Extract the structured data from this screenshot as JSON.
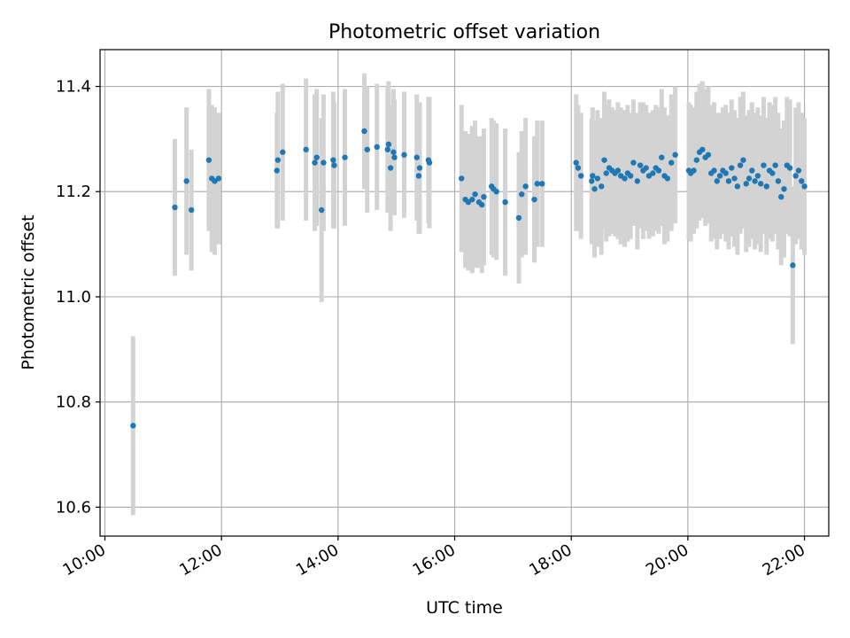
{
  "chart_data": {
    "type": "scatter",
    "title": "Photometric offset variation",
    "xlabel": "UTC time",
    "ylabel": "Photometric offset",
    "xlim": [
      "09:55",
      "22:25"
    ],
    "ylim": [
      10.545,
      11.47
    ],
    "grid": true,
    "x_ticks": [
      "10:00",
      "12:00",
      "14:00",
      "16:00",
      "18:00",
      "20:00",
      "22:00"
    ],
    "y_ticks": [
      "10.6",
      "10.8",
      "11.0",
      "11.2",
      "11.4"
    ],
    "point_color": "#1f77b4",
    "errorbar_color": "#d3d3d3",
    "x": [
      "10:29",
      "11:12",
      "11:24",
      "11:29",
      "11:47",
      "11:50",
      "11:53",
      "11:57",
      "12:57",
      "12:58",
      "13:03",
      "13:27",
      "13:36",
      "13:38",
      "13:43",
      "13:45",
      "13:55",
      "13:56",
      "14:07",
      "14:27",
      "14:30",
      "14:40",
      "14:51",
      "14:52",
      "14:54",
      "14:57",
      "14:58",
      "15:08",
      "15:21",
      "15:23",
      "15:24",
      "15:33",
      "15:34",
      "16:07",
      "16:11",
      "16:14",
      "16:18",
      "16:21",
      "16:25",
      "16:28",
      "16:30",
      "16:38",
      "16:40",
      "16:43",
      "16:52",
      "17:06",
      "17:09",
      "17:13",
      "17:22",
      "17:25",
      "17:30",
      "18:05",
      "18:07",
      "18:10",
      "18:21",
      "18:22",
      "18:24",
      "18:27",
      "18:31",
      "18:34",
      "18:36",
      "18:39",
      "18:42",
      "18:45",
      "18:48",
      "18:51",
      "18:55",
      "18:58",
      "19:01",
      "19:04",
      "19:08",
      "19:11",
      "19:14",
      "19:17",
      "19:20",
      "19:24",
      "19:27",
      "19:30",
      "19:33",
      "19:36",
      "19:39",
      "19:43",
      "19:47",
      "20:01",
      "20:03",
      "20:06",
      "20:09",
      "20:12",
      "20:15",
      "20:18",
      "20:21",
      "20:24",
      "20:27",
      "20:30",
      "20:33",
      "20:36",
      "20:39",
      "20:42",
      "20:45",
      "20:48",
      "20:51",
      "20:54",
      "20:57",
      "21:00",
      "21:03",
      "21:06",
      "21:09",
      "21:12",
      "21:15",
      "21:18",
      "21:21",
      "21:24",
      "21:27",
      "21:30",
      "21:33",
      "21:36",
      "21:39",
      "21:42",
      "21:45",
      "21:48",
      "21:51",
      "21:54",
      "21:57",
      "22:00"
    ],
    "y": [
      10.755,
      11.17,
      11.22,
      11.165,
      11.26,
      11.225,
      11.22,
      11.225,
      11.24,
      11.26,
      11.275,
      11.28,
      11.255,
      11.265,
      11.165,
      11.255,
      11.26,
      11.25,
      11.265,
      11.315,
      11.28,
      11.285,
      11.28,
      11.29,
      11.245,
      11.275,
      11.265,
      11.27,
      11.265,
      11.23,
      11.245,
      11.26,
      11.255,
      11.225,
      11.185,
      11.18,
      11.185,
      11.195,
      11.18,
      11.175,
      11.19,
      11.21,
      11.205,
      11.2,
      11.18,
      11.15,
      11.195,
      11.21,
      11.185,
      11.215,
      11.215,
      11.255,
      11.245,
      11.23,
      11.22,
      11.23,
      11.205,
      11.225,
      11.21,
      11.26,
      11.235,
      11.245,
      11.24,
      11.235,
      11.24,
      11.23,
      11.225,
      11.235,
      11.23,
      11.255,
      11.22,
      11.25,
      11.24,
      11.245,
      11.23,
      11.235,
      11.245,
      11.24,
      11.265,
      11.23,
      11.225,
      11.255,
      11.27,
      11.24,
      11.235,
      11.24,
      11.26,
      11.275,
      11.28,
      11.265,
      11.27,
      11.235,
      11.24,
      11.22,
      11.23,
      11.24,
      11.235,
      11.22,
      11.245,
      11.225,
      11.21,
      11.25,
      11.26,
      11.215,
      11.225,
      11.24,
      11.22,
      11.23,
      11.215,
      11.25,
      11.21,
      11.24,
      11.235,
      11.25,
      11.22,
      11.19,
      11.205,
      11.25,
      11.245,
      11.06,
      11.23,
      11.24,
      11.22,
      11.21
    ],
    "yerr": [
      0.17,
      0.13,
      0.14,
      0.115,
      0.135,
      0.14,
      0.14,
      0.125,
      0.11,
      0.13,
      0.13,
      0.135,
      0.13,
      0.13,
      0.175,
      0.13,
      0.13,
      0.12,
      0.13,
      0.11,
      0.12,
      0.12,
      0.12,
      0.12,
      0.12,
      0.12,
      0.11,
      0.12,
      0.12,
      0.11,
      0.125,
      0.12,
      0.125,
      0.14,
      0.13,
      0.13,
      0.14,
      0.14,
      0.125,
      0.13,
      0.13,
      0.13,
      0.13,
      0.13,
      0.14,
      0.125,
      0.12,
      0.13,
      0.12,
      0.12,
      0.12,
      0.13,
      0.12,
      0.12,
      0.12,
      0.13,
      0.13,
      0.13,
      0.13,
      0.13,
      0.13,
      0.13,
      0.12,
      0.12,
      0.13,
      0.13,
      0.13,
      0.13,
      0.12,
      0.12,
      0.13,
      0.12,
      0.13,
      0.12,
      0.12,
      0.12,
      0.12,
      0.12,
      0.13,
      0.13,
      0.12,
      0.13,
      0.13,
      0.13,
      0.13,
      0.12,
      0.13,
      0.13,
      0.13,
      0.13,
      0.13,
      0.13,
      0.13,
      0.13,
      0.12,
      0.12,
      0.13,
      0.13,
      0.13,
      0.13,
      0.13,
      0.13,
      0.13,
      0.13,
      0.13,
      0.13,
      0.13,
      0.13,
      0.13,
      0.13,
      0.13,
      0.13,
      0.13,
      0.13,
      0.13,
      0.13,
      0.13,
      0.13,
      0.13,
      0.15,
      0.13,
      0.13,
      0.13,
      0.13
    ]
  }
}
